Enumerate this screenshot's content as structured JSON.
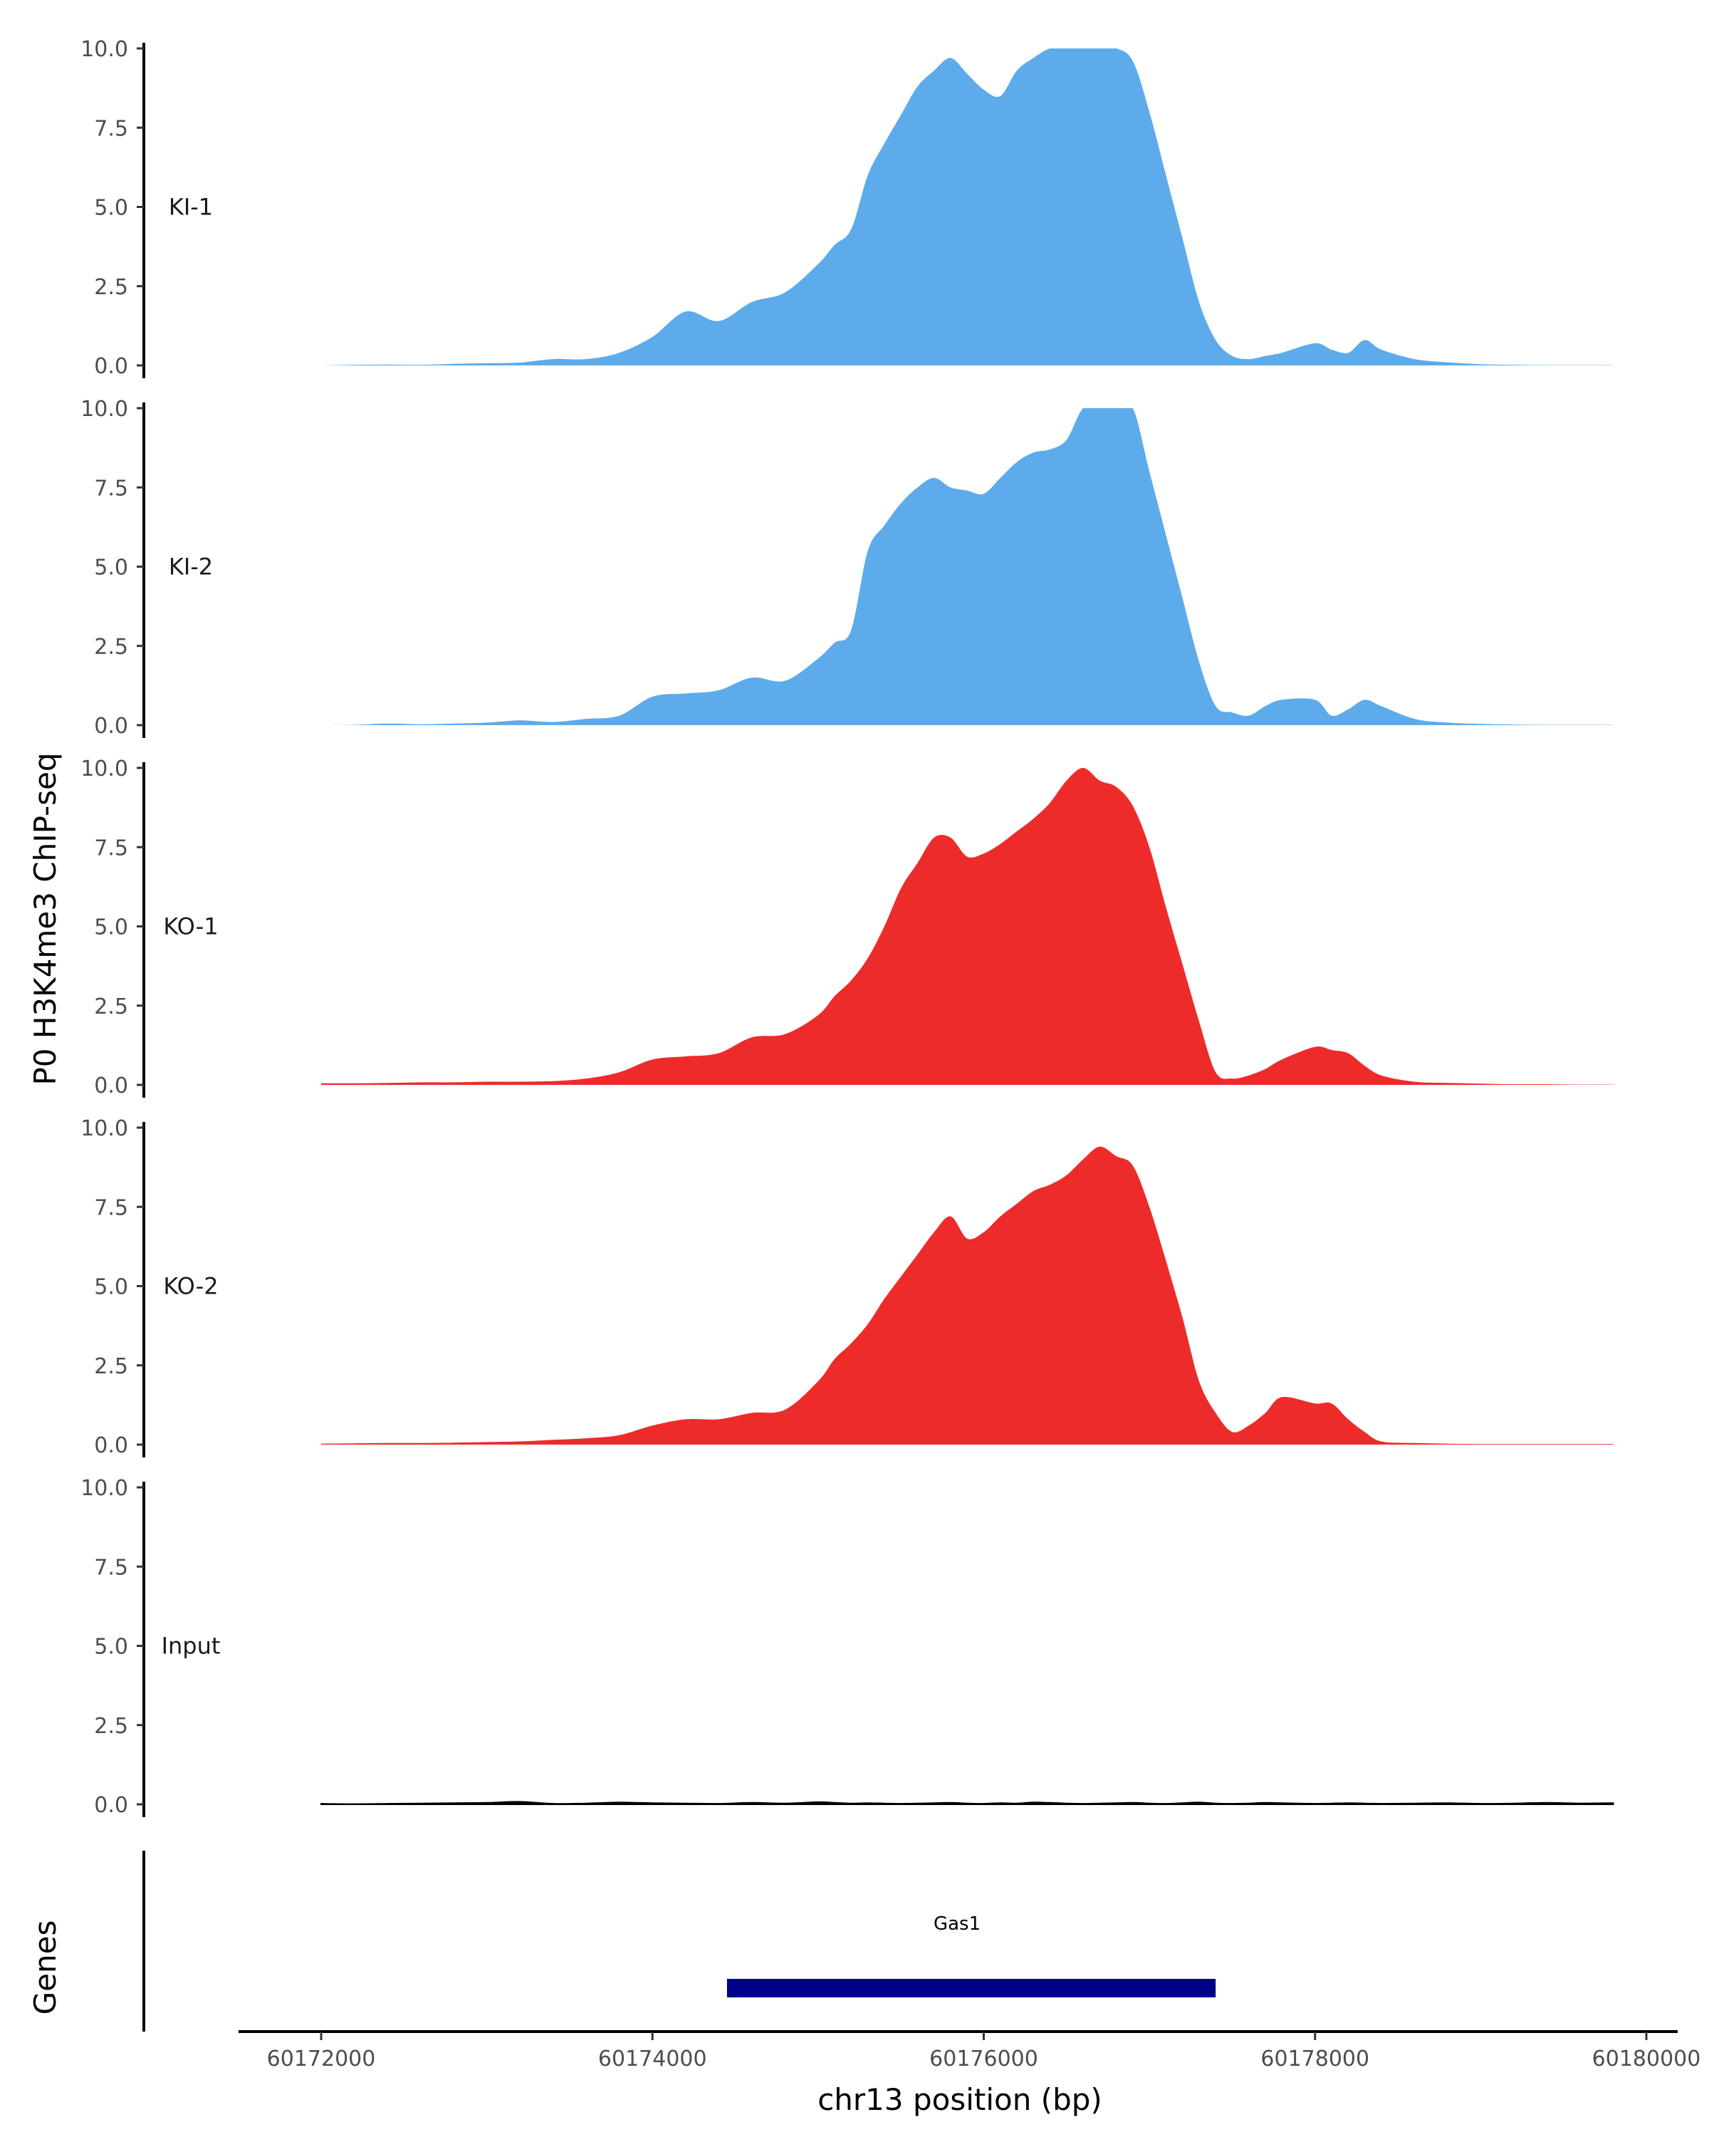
{
  "chart_data": {
    "type": "area",
    "ylabel": "P0 H3K4me3 ChIP-seq",
    "xlabel": "chr13 position (bp)",
    "gene_track_label": "Genes",
    "ylim": [
      0,
      10
    ],
    "yticks": [
      0,
      2.5,
      5,
      7.5,
      10
    ],
    "ytick_labels": [
      "0.0",
      "2.5",
      "5.0",
      "7.5",
      "10.0"
    ],
    "xlim": [
      60171500,
      60180300
    ],
    "xticks": [
      60172000,
      60174000,
      60176000,
      60178000,
      60180000
    ],
    "xtick_labels": [
      "60172000",
      "60174000",
      "60176000",
      "60178000",
      "60180000"
    ],
    "grid": false,
    "colors": {
      "KI": "#5dabeb",
      "KO": "#ee2b2b",
      "Input": "#000000",
      "gene": "#00008b"
    },
    "x": [
      60172000,
      60172200,
      60172400,
      60172600,
      60172800,
      60173000,
      60173200,
      60173400,
      60173600,
      60173800,
      60174000,
      60174200,
      60174400,
      60174600,
      60174800,
      60175000,
      60175100,
      60175200,
      60175300,
      60175400,
      60175500,
      60175600,
      60175700,
      60175800,
      60175900,
      60176000,
      60176100,
      60176200,
      60176300,
      60176400,
      60176500,
      60176600,
      60176700,
      60176800,
      60176900,
      60177000,
      60177100,
      60177200,
      60177300,
      60177400,
      60177500,
      60177600,
      60177700,
      60177800,
      60178000,
      60178100,
      60178200,
      60178300,
      60178400,
      60178600,
      60178800,
      60179000,
      60179200,
      60179400,
      60179600,
      60179800
    ],
    "series": [
      {
        "name": "KI-1",
        "group": "KI",
        "values": [
          0,
          0.02,
          0.03,
          0.02,
          0.05,
          0.07,
          0.09,
          0.2,
          0.2,
          0.4,
          0.9,
          1.7,
          1.4,
          2.0,
          2.3,
          3.2,
          3.8,
          4.3,
          6.0,
          7.0,
          7.9,
          8.8,
          9.3,
          9.7,
          9.2,
          8.7,
          8.5,
          9.3,
          9.7,
          10,
          10,
          10,
          10,
          10,
          9.6,
          8.0,
          6.0,
          4.0,
          2.0,
          0.8,
          0.3,
          0.2,
          0.3,
          0.4,
          0.7,
          0.5,
          0.4,
          0.8,
          0.5,
          0.2,
          0.1,
          0.04,
          0.02,
          0.01,
          0.01,
          0.01
        ]
      },
      {
        "name": "KI-2",
        "group": "KI",
        "values": [
          0,
          0.01,
          0.05,
          0.03,
          0.05,
          0.08,
          0.15,
          0.1,
          0.2,
          0.3,
          0.9,
          1.0,
          1.1,
          1.5,
          1.4,
          2.1,
          2.6,
          3.0,
          5.5,
          6.3,
          7.0,
          7.5,
          7.8,
          7.5,
          7.4,
          7.3,
          7.8,
          8.3,
          8.6,
          8.7,
          9.0,
          10,
          10,
          10,
          10,
          8.0,
          6.0,
          4.0,
          2.0,
          0.6,
          0.4,
          0.3,
          0.6,
          0.8,
          0.8,
          0.3,
          0.5,
          0.8,
          0.6,
          0.2,
          0.08,
          0.04,
          0.02,
          0.01,
          0.01,
          0.01
        ]
      },
      {
        "name": "KO-1",
        "group": "KO",
        "values": [
          0.05,
          0.05,
          0.06,
          0.08,
          0.08,
          0.1,
          0.1,
          0.12,
          0.2,
          0.4,
          0.8,
          0.9,
          1.0,
          1.5,
          1.6,
          2.2,
          2.8,
          3.3,
          4.0,
          5.0,
          6.2,
          7.0,
          7.8,
          7.8,
          7.2,
          7.3,
          7.6,
          8.0,
          8.4,
          8.9,
          9.6,
          10,
          9.6,
          9.4,
          8.8,
          7.5,
          5.6,
          3.8,
          2.0,
          0.4,
          0.2,
          0.3,
          0.5,
          0.8,
          1.2,
          1.1,
          1.0,
          0.6,
          0.3,
          0.1,
          0.06,
          0.04,
          0.02,
          0.02,
          0.01,
          0.01
        ]
      },
      {
        "name": "KO-2",
        "group": "KO",
        "values": [
          0.03,
          0.04,
          0.05,
          0.05,
          0.06,
          0.08,
          0.1,
          0.15,
          0.2,
          0.3,
          0.6,
          0.8,
          0.8,
          1.0,
          1.1,
          2.0,
          2.7,
          3.2,
          3.8,
          4.6,
          5.3,
          6.0,
          6.7,
          7.2,
          6.5,
          6.7,
          7.2,
          7.6,
          8.0,
          8.2,
          8.5,
          9.0,
          9.4,
          9.1,
          8.8,
          7.5,
          5.8,
          4.0,
          2.0,
          1.0,
          0.4,
          0.6,
          1.0,
          1.5,
          1.3,
          1.3,
          0.8,
          0.4,
          0.1,
          0.05,
          0.03,
          0.02,
          0.02,
          0.02,
          0.02,
          0.02
        ]
      },
      {
        "name": "Input",
        "group": "Input",
        "values": [
          0.02,
          0.01,
          0.02,
          0.03,
          0.04,
          0.05,
          0.08,
          0.02,
          0.03,
          0.06,
          0.04,
          0.03,
          0.02,
          0.05,
          0.03,
          0.07,
          0.05,
          0.03,
          0.04,
          0.03,
          0.02,
          0.03,
          0.04,
          0.05,
          0.03,
          0.02,
          0.04,
          0.03,
          0.06,
          0.05,
          0.03,
          0.02,
          0.03,
          0.04,
          0.05,
          0.03,
          0.02,
          0.04,
          0.06,
          0.03,
          0.02,
          0.03,
          0.05,
          0.04,
          0.02,
          0.03,
          0.04,
          0.03,
          0.02,
          0.03,
          0.04,
          0.02,
          0.03,
          0.05,
          0.03,
          0.04
        ]
      }
    ],
    "genes": [
      {
        "name": "Gas1",
        "start": 60174450,
        "end": 60177400
      }
    ]
  }
}
